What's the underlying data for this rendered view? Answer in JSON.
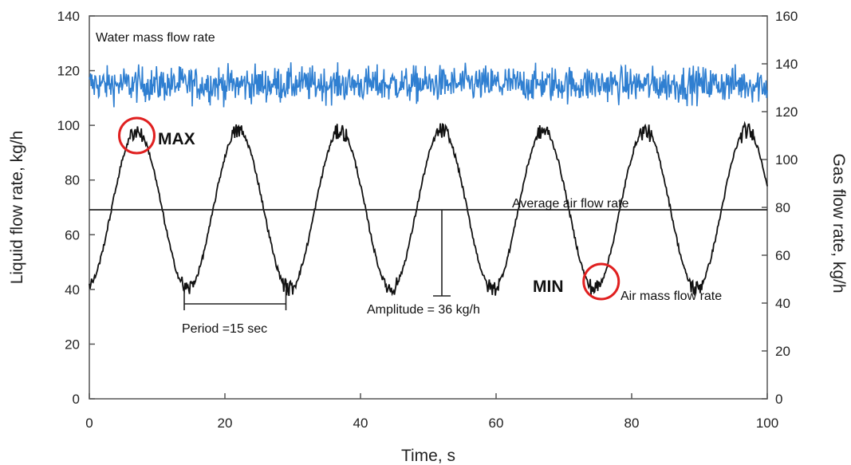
{
  "chart_data": {
    "type": "line",
    "title": "",
    "xlabel": "Time, s",
    "ylabel_left": "Liquid flow rate, kg/h",
    "ylabel_right": "Gas flow rate, kg/h",
    "xlim": [
      0,
      100
    ],
    "ylim_left": [
      0,
      140
    ],
    "ylim_right": [
      0,
      160
    ],
    "x_ticks": [
      0,
      20,
      40,
      60,
      80,
      100
    ],
    "y_ticks_left": [
      0,
      20,
      40,
      60,
      80,
      100,
      120,
      140
    ],
    "y_ticks_right": [
      0,
      20,
      40,
      60,
      80,
      100,
      120,
      140,
      160
    ],
    "grid": false,
    "series": [
      {
        "name": "Water mass flow rate",
        "axis": "left",
        "color": "#2f7fd1",
        "mean": 114,
        "noise_range": [
          106,
          124
        ]
      },
      {
        "name": "Air mass flow rate",
        "axis": "right",
        "color": "#111111",
        "mean": 78,
        "amplitude": 36,
        "period": 15,
        "max": 112,
        "min": 46
      }
    ],
    "reference_lines": [
      {
        "label": "Average air flow rate",
        "axis": "right",
        "value": 79
      }
    ],
    "annotations": [
      {
        "text": "MAX",
        "x": 7,
        "y_right": 110
      },
      {
        "text": "MIN",
        "x": 75.5,
        "y_right": 49
      },
      {
        "text": "Water mass flow rate"
      },
      {
        "text": "Average air flow rate"
      },
      {
        "text": "Air mass flow rate"
      },
      {
        "text": "Period =15 sec",
        "x_start": 14,
        "x_end": 29
      },
      {
        "text": "Amplitude = 36 kg/h",
        "x": 52
      }
    ]
  }
}
